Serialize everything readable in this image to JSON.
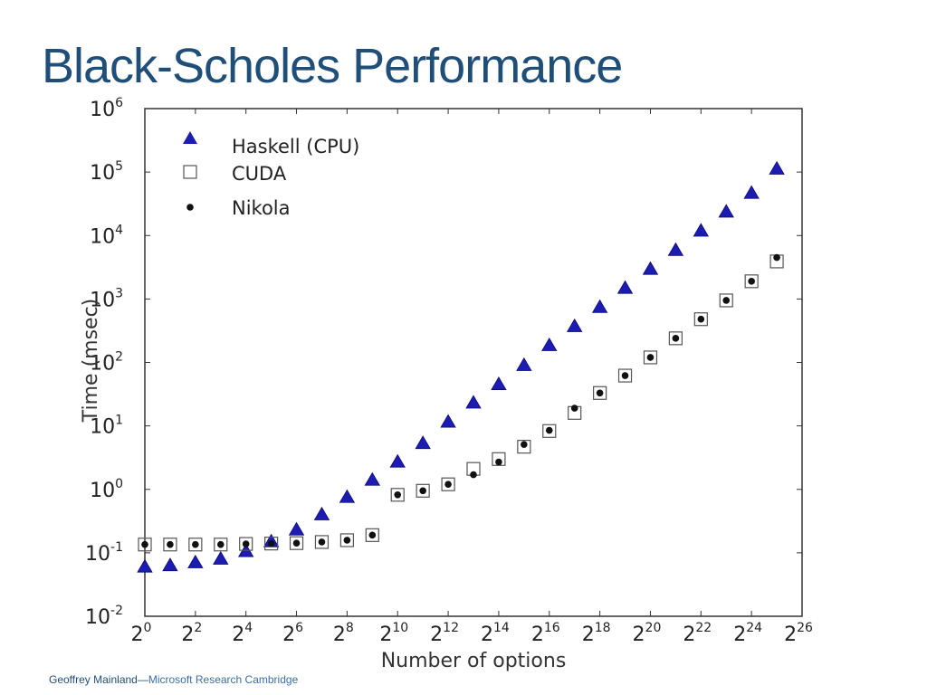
{
  "slide": {
    "title": "Black-Scholes Performance",
    "footer_author": "Geoffrey Mainland",
    "footer_dash": "—",
    "footer_org": "Microsoft Research Cambridge"
  },
  "colors": {
    "title": "#1f4e79",
    "haskell": "#1c1cb4",
    "cuda_stroke": "#555555",
    "nikola": "#111111"
  },
  "chart_data": {
    "type": "scatter",
    "xlabel": "Number of options",
    "ylabel": "Time (msec)",
    "x_scale": "log2",
    "y_scale": "log10",
    "xlim_exponent": [
      0,
      26
    ],
    "ylim_exponent": [
      -2,
      6
    ],
    "x_ticks": [
      {
        "base": "2",
        "exp": "0"
      },
      {
        "base": "2",
        "exp": "2"
      },
      {
        "base": "2",
        "exp": "4"
      },
      {
        "base": "2",
        "exp": "6"
      },
      {
        "base": "2",
        "exp": "8"
      },
      {
        "base": "2",
        "exp": "10"
      },
      {
        "base": "2",
        "exp": "12"
      },
      {
        "base": "2",
        "exp": "14"
      },
      {
        "base": "2",
        "exp": "16"
      },
      {
        "base": "2",
        "exp": "18"
      },
      {
        "base": "2",
        "exp": "20"
      },
      {
        "base": "2",
        "exp": "22"
      },
      {
        "base": "2",
        "exp": "24"
      },
      {
        "base": "2",
        "exp": "26"
      }
    ],
    "y_ticks": [
      {
        "base": "10",
        "exp": "6"
      },
      {
        "base": "10",
        "exp": "5"
      },
      {
        "base": "10",
        "exp": "4"
      },
      {
        "base": "10",
        "exp": "3"
      },
      {
        "base": "10",
        "exp": "2"
      },
      {
        "base": "10",
        "exp": "1"
      },
      {
        "base": "10",
        "exp": "0"
      },
      {
        "base": "10",
        "exp": "-1"
      },
      {
        "base": "10",
        "exp": "-2"
      }
    ],
    "legend_position": "top-left",
    "grid": false,
    "x_exponents": [
      0,
      1,
      2,
      3,
      4,
      5,
      6,
      7,
      8,
      9,
      10,
      11,
      12,
      13,
      14,
      15,
      16,
      17,
      18,
      19,
      20,
      21,
      22,
      23,
      24,
      25
    ],
    "series": [
      {
        "name": "Haskell (CPU)",
        "marker": "triangle",
        "x_exponents": [
          0,
          1,
          2,
          3,
          4,
          5,
          6,
          7,
          8,
          9,
          10,
          11,
          12,
          13,
          14,
          15,
          16,
          17,
          18,
          19,
          20,
          21,
          22,
          23,
          24,
          25
        ],
        "values_ms": [
          0.06,
          0.063,
          0.07,
          0.08,
          0.105,
          0.15,
          0.23,
          0.4,
          0.75,
          1.4,
          2.7,
          5.3,
          11.5,
          23,
          45,
          90,
          185,
          370,
          740,
          1480,
          2950,
          5850,
          11800,
          23500,
          46500,
          112000
        ]
      },
      {
        "name": "CUDA",
        "marker": "open-square",
        "x_exponents": [
          0,
          1,
          2,
          3,
          4,
          5,
          6,
          7,
          8,
          9,
          10,
          11,
          12,
          13,
          14,
          15,
          16,
          17,
          18,
          19,
          20,
          21,
          22,
          23,
          24,
          25
        ],
        "values_ms": [
          0.135,
          0.135,
          0.135,
          0.135,
          0.138,
          0.14,
          0.142,
          0.148,
          0.158,
          0.19,
          0.82,
          0.95,
          1.2,
          2.1,
          3.0,
          4.7,
          8.3,
          16,
          33,
          62,
          120,
          240,
          480,
          950,
          1900,
          3900
        ]
      },
      {
        "name": "Nikola",
        "marker": "dot",
        "x_exponents": [
          0,
          1,
          2,
          3,
          4,
          5,
          6,
          7,
          8,
          9,
          10,
          11,
          12,
          13,
          14,
          15,
          16,
          17,
          18,
          19,
          20,
          21,
          22,
          23,
          24,
          25
        ],
        "values_ms": [
          0.135,
          0.135,
          0.135,
          0.135,
          0.138,
          0.14,
          0.142,
          0.148,
          0.158,
          0.19,
          0.82,
          0.95,
          1.2,
          1.7,
          2.7,
          5.1,
          8.5,
          19,
          33,
          62,
          120,
          240,
          480,
          950,
          1900,
          4500
        ]
      }
    ]
  }
}
